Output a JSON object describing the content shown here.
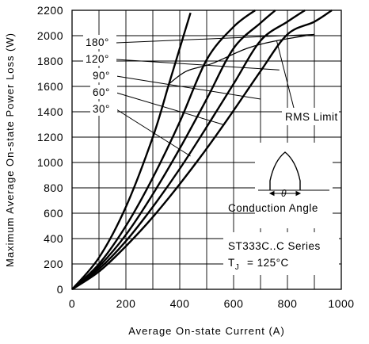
{
  "chart_data": {
    "type": "line",
    "xlabel": "Average On-state Current (A)",
    "ylabel": "Maximum Average On-state Power Loss (W)",
    "xlim": [
      0,
      1000
    ],
    "ylim": [
      0,
      2200
    ],
    "x_ticks": [
      0,
      200,
      400,
      600,
      800,
      1000
    ],
    "y_ticks": [
      0,
      200,
      400,
      600,
      800,
      1000,
      1200,
      1400,
      1600,
      1800,
      2000,
      2200
    ],
    "grid": true,
    "series": [
      {
        "name": "180°",
        "x": [
          0,
          100,
          200,
          300,
          400,
          500,
          600,
          700,
          800,
          900,
          965
        ],
        "y": [
          0,
          140,
          340,
          570,
          830,
          1110,
          1410,
          1720,
          2010,
          2110,
          2200
        ]
      },
      {
        "name": "120°",
        "x": [
          0,
          100,
          200,
          300,
          400,
          500,
          600,
          700,
          800,
          865
        ],
        "y": [
          0,
          160,
          380,
          650,
          950,
          1280,
          1620,
          1960,
          2110,
          2200
        ]
      },
      {
        "name": "90°",
        "x": [
          0,
          100,
          200,
          300,
          400,
          500,
          600,
          700,
          755
        ],
        "y": [
          0,
          180,
          430,
          750,
          1110,
          1500,
          1900,
          2100,
          2200
        ]
      },
      {
        "name": "60°",
        "x": [
          0,
          100,
          200,
          300,
          400,
          500,
          600,
          680
        ],
        "y": [
          0,
          200,
          500,
          880,
          1320,
          1810,
          2070,
          2200
        ]
      },
      {
        "name": "30°",
        "x": [
          0,
          100,
          200,
          300,
          360,
          400,
          440
        ],
        "y": [
          0,
          250,
          650,
          1200,
          1620,
          1900,
          2180
        ]
      }
    ],
    "rms_limit": {
      "label": "RMS Limit",
      "x": [
        360,
        425,
        520,
        650,
        760,
        900
      ],
      "y": [
        1620,
        1720,
        1780,
        1900,
        1960,
        2010
      ]
    },
    "curve_labels": [
      "180°",
      "120°",
      "90°",
      "60°",
      "30°"
    ],
    "inset_label": "Conduction Angle",
    "series_label": "ST333C..C Series",
    "tj_label": "= 125°C"
  }
}
